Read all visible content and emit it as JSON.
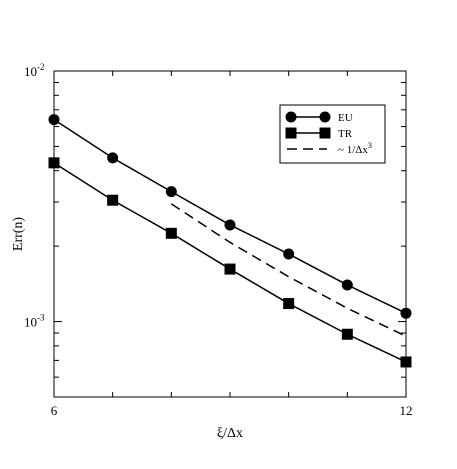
{
  "chart_data": {
    "type": "line",
    "title": "",
    "xlabel": "ξ/Δx",
    "ylabel": "Err(n)",
    "yscale": "log",
    "xlim": [
      6,
      12
    ],
    "ylim": [
      0.0005,
      0.01
    ],
    "x_ticks": [
      6,
      12
    ],
    "x_minor_ticks": [
      7,
      8,
      9,
      10,
      11
    ],
    "y_major_ticks": [
      {
        "value": 0.01,
        "base": "10",
        "exp": "-2"
      },
      {
        "value": 0.001,
        "base": "10",
        "exp": "-3"
      }
    ],
    "grid": false,
    "legend_position": "top-right",
    "series": [
      {
        "name": "EU",
        "marker": "circle",
        "line": "solid",
        "x": [
          6,
          7,
          8,
          9,
          10,
          11,
          12
        ],
        "y": [
          0.0064,
          0.0045,
          0.0033,
          0.00243,
          0.00186,
          0.0014,
          0.00108
        ]
      },
      {
        "name": "TR",
        "marker": "square",
        "line": "solid",
        "x": [
          6,
          7,
          8,
          9,
          10,
          11,
          12
        ],
        "y": [
          0.0043,
          0.00305,
          0.00225,
          0.00162,
          0.00118,
          0.00089,
          0.00069
        ]
      },
      {
        "name": "~ 1/Δx",
        "name_sup": "3",
        "marker": "none",
        "line": "dashed",
        "x": [
          8,
          9,
          10,
          11,
          12
        ],
        "y": [
          0.00295,
          0.00207,
          0.00151,
          0.00113,
          0.000874
        ]
      }
    ]
  },
  "colors": {
    "line": "#000000",
    "background": "#ffffff"
  }
}
